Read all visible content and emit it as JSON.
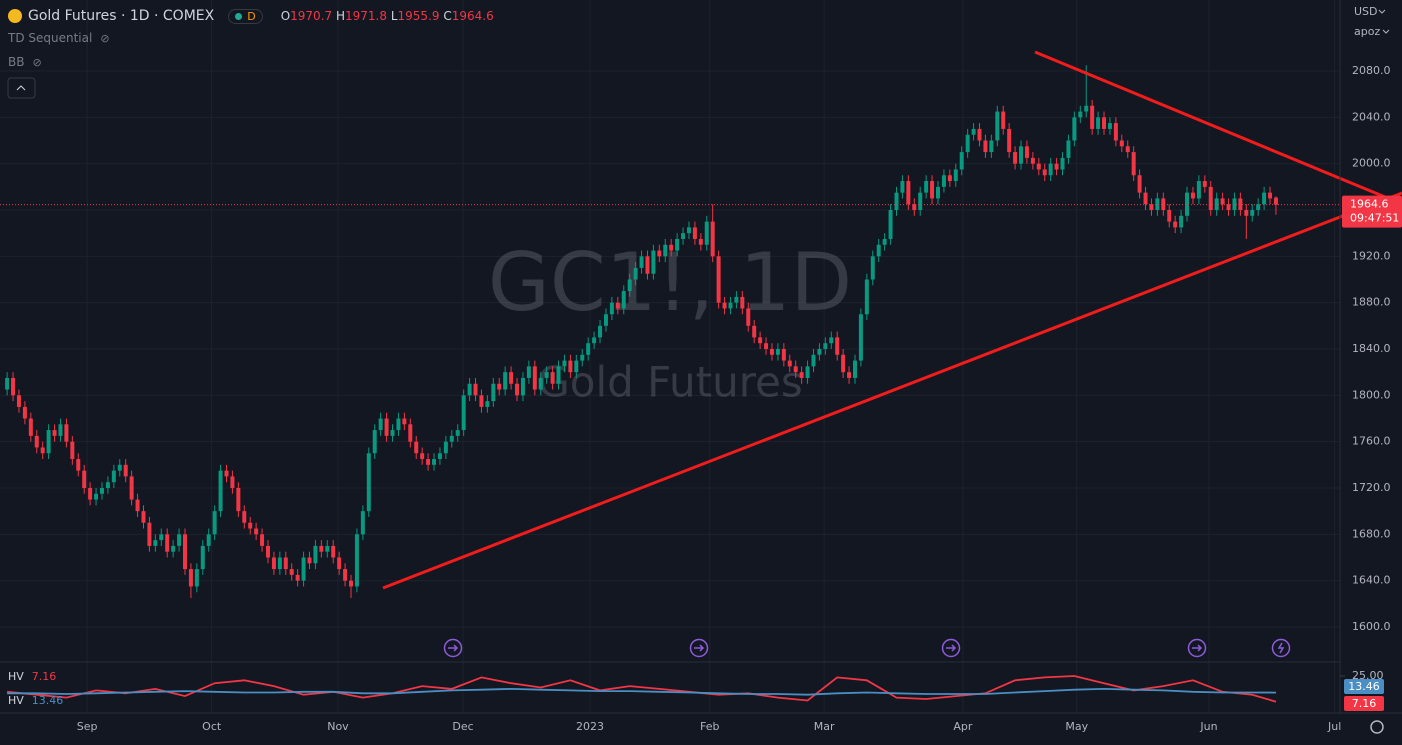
{
  "chart_data": {
    "type": "candlestick",
    "title": "Gold Futures · 1D · COMEX",
    "interval": "D",
    "ohlc_labels": [
      "O",
      "H",
      "L",
      "C"
    ],
    "indicators": [
      "TD Sequential",
      "BB"
    ],
    "watermark": {
      "symbol": "GC1!, 1D",
      "name": "Gold Futures"
    },
    "currency": "USD",
    "scale_mode": "apoz",
    "countdown": "09:47:51",
    "up_color": "#089981",
    "down_color": "#f23645",
    "price_line": true,
    "grid": true,
    "open": [
      1805,
      1815,
      1800,
      1790,
      1780,
      1765,
      1755,
      1750,
      1770,
      1765,
      1775,
      1760,
      1745,
      1735,
      1720,
      1710,
      1715,
      1720,
      1725,
      1735,
      1740,
      1730,
      1710,
      1700,
      1690,
      1670,
      1675,
      1680,
      1665,
      1670,
      1680,
      1650,
      1635,
      1650,
      1670,
      1680,
      1700,
      1735,
      1730,
      1720,
      1700,
      1690,
      1685,
      1680,
      1670,
      1660,
      1650,
      1660,
      1650,
      1645,
      1640,
      1660,
      1655,
      1670,
      1665,
      1670,
      1660,
      1650,
      1640,
      1635,
      1680,
      1700,
      1750,
      1770,
      1780,
      1765,
      1770,
      1780,
      1775,
      1760,
      1750,
      1745,
      1740,
      1745,
      1750,
      1760,
      1765,
      1770,
      1800,
      1810,
      1800,
      1790,
      1795,
      1810,
      1805,
      1820,
      1810,
      1800,
      1815,
      1825,
      1805,
      1815,
      1820,
      1810,
      1825,
      1830,
      1820,
      1830,
      1835,
      1845,
      1850,
      1860,
      1870,
      1880,
      1875,
      1890,
      1900,
      1910,
      1920,
      1905,
      1925,
      1920,
      1930,
      1925,
      1935,
      1940,
      1945,
      1935,
      1930,
      1950,
      1920,
      1880,
      1875,
      1880,
      1885,
      1875,
      1860,
      1850,
      1845,
      1840,
      1835,
      1840,
      1830,
      1825,
      1820,
      1815,
      1825,
      1835,
      1840,
      1845,
      1850,
      1835,
      1820,
      1815,
      1830,
      1870,
      1900,
      1920,
      1930,
      1935,
      1960,
      1975,
      1985,
      1965,
      1960,
      1975,
      1985,
      1970,
      1980,
      1990,
      1985,
      1995,
      2010,
      2025,
      2030,
      2020,
      2010,
      2020,
      2045,
      2030,
      2010,
      2000,
      2015,
      2005,
      2000,
      1995,
      1990,
      2000,
      1995,
      2005,
      2020,
      2040,
      2045,
      2050,
      2030,
      2040,
      2030,
      2035,
      2020,
      2015,
      2010,
      1990,
      1975,
      1965,
      1960,
      1970,
      1960,
      1950,
      1945,
      1955,
      1975,
      1970,
      1985,
      1980,
      1960,
      1970,
      1965,
      1960,
      1970,
      1960,
      1955,
      1960,
      1965,
      1975,
      1970.7
    ],
    "high": [
      1820,
      1820,
      1805,
      1795,
      1785,
      1770,
      1760,
      1775,
      1775,
      1780,
      1780,
      1765,
      1750,
      1740,
      1725,
      1720,
      1725,
      1730,
      1740,
      1745,
      1745,
      1735,
      1715,
      1705,
      1695,
      1680,
      1685,
      1685,
      1675,
      1685,
      1685,
      1655,
      1655,
      1675,
      1685,
      1705,
      1740,
      1740,
      1735,
      1725,
      1705,
      1695,
      1690,
      1685,
      1675,
      1665,
      1665,
      1665,
      1655,
      1650,
      1665,
      1665,
      1675,
      1675,
      1675,
      1675,
      1665,
      1655,
      1645,
      1685,
      1705,
      1755,
      1775,
      1785,
      1785,
      1775,
      1785,
      1785,
      1780,
      1765,
      1755,
      1750,
      1750,
      1755,
      1765,
      1770,
      1775,
      1805,
      1815,
      1815,
      1805,
      1800,
      1815,
      1815,
      1825,
      1825,
      1815,
      1820,
      1830,
      1830,
      1820,
      1825,
      1825,
      1830,
      1835,
      1835,
      1835,
      1840,
      1850,
      1855,
      1865,
      1875,
      1885,
      1885,
      1895,
      1905,
      1915,
      1925,
      1925,
      1930,
      1930,
      1935,
      1935,
      1940,
      1945,
      1950,
      1950,
      1940,
      1955,
      1965,
      1925,
      1885,
      1885,
      1890,
      1890,
      1880,
      1865,
      1855,
      1850,
      1845,
      1845,
      1845,
      1835,
      1830,
      1825,
      1830,
      1840,
      1845,
      1850,
      1855,
      1855,
      1840,
      1825,
      1835,
      1875,
      1905,
      1925,
      1935,
      1940,
      1965,
      1980,
      1990,
      1990,
      1970,
      1980,
      1990,
      1990,
      1985,
      1995,
      1995,
      2000,
      2015,
      2030,
      2035,
      2035,
      2025,
      2025,
      2050,
      2050,
      2035,
      2015,
      2020,
      2020,
      2010,
      2005,
      2000,
      2005,
      2005,
      2010,
      2025,
      2045,
      2050,
      2085,
      2055,
      2045,
      2045,
      2040,
      2040,
      2025,
      2020,
      2015,
      1995,
      1980,
      1970,
      1975,
      1975,
      1965,
      1955,
      1960,
      1980,
      1980,
      1990,
      1990,
      1985,
      1975,
      1975,
      1970,
      1975,
      1975,
      1965,
      1965,
      1970,
      1980,
      1980,
      1971.8
    ],
    "low": [
      1800,
      1795,
      1785,
      1775,
      1760,
      1750,
      1745,
      1745,
      1760,
      1760,
      1755,
      1740,
      1730,
      1715,
      1705,
      1705,
      1710,
      1715,
      1720,
      1730,
      1725,
      1705,
      1695,
      1685,
      1665,
      1665,
      1670,
      1660,
      1660,
      1665,
      1645,
      1625,
      1630,
      1645,
      1665,
      1675,
      1695,
      1725,
      1715,
      1695,
      1685,
      1680,
      1675,
      1665,
      1655,
      1645,
      1645,
      1645,
      1640,
      1635,
      1635,
      1650,
      1650,
      1660,
      1660,
      1655,
      1645,
      1635,
      1625,
      1630,
      1675,
      1695,
      1745,
      1765,
      1760,
      1760,
      1765,
      1770,
      1755,
      1745,
      1740,
      1735,
      1735,
      1740,
      1745,
      1755,
      1760,
      1765,
      1795,
      1795,
      1785,
      1785,
      1790,
      1800,
      1800,
      1805,
      1795,
      1795,
      1810,
      1800,
      1800,
      1810,
      1805,
      1805,
      1820,
      1815,
      1815,
      1825,
      1830,
      1840,
      1845,
      1855,
      1865,
      1870,
      1870,
      1885,
      1895,
      1905,
      1900,
      1900,
      1915,
      1915,
      1920,
      1920,
      1930,
      1935,
      1930,
      1925,
      1925,
      1915,
      1875,
      1870,
      1870,
      1875,
      1870,
      1855,
      1845,
      1840,
      1835,
      1830,
      1830,
      1825,
      1820,
      1815,
      1810,
      1810,
      1820,
      1830,
      1835,
      1840,
      1830,
      1815,
      1810,
      1810,
      1825,
      1865,
      1895,
      1915,
      1925,
      1930,
      1955,
      1970,
      1960,
      1955,
      1955,
      1970,
      1965,
      1965,
      1975,
      1980,
      1980,
      1990,
      2005,
      2020,
      2015,
      2005,
      2005,
      2015,
      2025,
      2005,
      1995,
      1995,
      2000,
      1995,
      1990,
      1985,
      1985,
      1990,
      1990,
      2000,
      2015,
      2035,
      2040,
      2025,
      2025,
      2025,
      2025,
      2015,
      2010,
      2005,
      1985,
      1970,
      1960,
      1955,
      1955,
      1955,
      1945,
      1940,
      1940,
      1950,
      1965,
      1965,
      1975,
      1955,
      1955,
      1960,
      1955,
      1955,
      1955,
      1935,
      1950,
      1955,
      1960,
      1965,
      1955.9
    ],
    "close": [
      1815,
      1800,
      1790,
      1780,
      1765,
      1755,
      1750,
      1770,
      1765,
      1775,
      1760,
      1745,
      1735,
      1720,
      1710,
      1715,
      1720,
      1725,
      1735,
      1740,
      1730,
      1710,
      1700,
      1690,
      1670,
      1675,
      1680,
      1665,
      1670,
      1680,
      1650,
      1635,
      1650,
      1670,
      1680,
      1700,
      1735,
      1730,
      1720,
      1700,
      1690,
      1685,
      1680,
      1670,
      1660,
      1650,
      1660,
      1650,
      1645,
      1640,
      1660,
      1655,
      1670,
      1665,
      1670,
      1660,
      1650,
      1640,
      1635,
      1680,
      1700,
      1750,
      1770,
      1780,
      1765,
      1770,
      1780,
      1775,
      1760,
      1750,
      1745,
      1740,
      1745,
      1750,
      1760,
      1765,
      1770,
      1800,
      1810,
      1800,
      1790,
      1795,
      1810,
      1805,
      1820,
      1810,
      1800,
      1815,
      1825,
      1805,
      1815,
      1820,
      1810,
      1825,
      1830,
      1820,
      1830,
      1835,
      1845,
      1850,
      1860,
      1870,
      1880,
      1875,
      1890,
      1900,
      1910,
      1920,
      1905,
      1925,
      1920,
      1930,
      1925,
      1935,
      1940,
      1945,
      1935,
      1930,
      1950,
      1920,
      1880,
      1875,
      1880,
      1885,
      1875,
      1860,
      1850,
      1845,
      1840,
      1835,
      1840,
      1830,
      1825,
      1820,
      1815,
      1825,
      1835,
      1840,
      1845,
      1850,
      1835,
      1820,
      1815,
      1830,
      1870,
      1900,
      1920,
      1930,
      1935,
      1960,
      1975,
      1985,
      1965,
      1960,
      1975,
      1985,
      1970,
      1980,
      1990,
      1985,
      1995,
      2010,
      2025,
      2030,
      2020,
      2010,
      2020,
      2045,
      2030,
      2010,
      2000,
      2015,
      2005,
      2000,
      1995,
      1990,
      2000,
      1995,
      2005,
      2020,
      2040,
      2045,
      2050,
      2030,
      2040,
      2030,
      2035,
      2020,
      2015,
      2010,
      1990,
      1975,
      1965,
      1960,
      1970,
      1960,
      1950,
      1945,
      1955,
      1975,
      1970,
      1985,
      1980,
      1960,
      1970,
      1965,
      1960,
      1970,
      1960,
      1955,
      1960,
      1965,
      1975,
      1970,
      1964.6
    ],
    "xlim": [
      -1.2,
      224.8
    ],
    "xticks": [
      {
        "value": 13.5,
        "label": "Sep"
      },
      {
        "value": 34.5,
        "label": "Oct"
      },
      {
        "value": 55.8,
        "label": "Nov"
      },
      {
        "value": 76.9,
        "label": "Dec"
      },
      {
        "value": 98.3,
        "label": "2023"
      },
      {
        "value": 118.5,
        "label": "Feb"
      },
      {
        "value": 137.8,
        "label": "Mar"
      },
      {
        "value": 161.2,
        "label": "Apr"
      },
      {
        "value": 180.4,
        "label": "May"
      },
      {
        "value": 202.7,
        "label": "Jun"
      },
      {
        "value": 223.9,
        "label": "Jul"
      }
    ],
    "ylim": [
      1571.5,
      2141.3
    ],
    "yticks": [
      {
        "value": 1600,
        "label": "1600.0"
      },
      {
        "value": 1640,
        "label": "1640.0"
      },
      {
        "value": 1680,
        "label": "1680.0"
      },
      {
        "value": 1720,
        "label": "1720.0"
      },
      {
        "value": 1760,
        "label": "1760.0"
      },
      {
        "value": 1800,
        "label": "1800.0"
      },
      {
        "value": 1840,
        "label": "1840.0"
      },
      {
        "value": 1880,
        "label": "1880.0"
      },
      {
        "value": 1920,
        "label": "1920.0"
      },
      {
        "value": 1960,
        "label": "1960.0"
      },
      {
        "value": 2000,
        "label": "2000.0"
      },
      {
        "value": 2040,
        "label": "2040.0"
      },
      {
        "value": 2080,
        "label": "2080.0"
      }
    ],
    "hv": {
      "type": "line",
      "ylim": [
        0,
        34
      ],
      "yticks": [
        {
          "value": 25,
          "label": "25.00"
        }
      ],
      "x": [
        0,
        5,
        10,
        15,
        20,
        25,
        30,
        35,
        40,
        45,
        50,
        55,
        60,
        65,
        70,
        75,
        80,
        85,
        90,
        95,
        100,
        105,
        110,
        115,
        120,
        125,
        130,
        135,
        140,
        145,
        150,
        155,
        160,
        165,
        170,
        175,
        180,
        185,
        190,
        195,
        200,
        205,
        210,
        214
      ],
      "series": [
        {
          "name": "HV",
          "color": "#f23645",
          "values": [
            14,
            12,
            10,
            15,
            13,
            16,
            11,
            20,
            22,
            18,
            12,
            14,
            10,
            13,
            18,
            16,
            24,
            20,
            17,
            22,
            15,
            18,
            16,
            14,
            12,
            13,
            10,
            8,
            24,
            22,
            10,
            9,
            11,
            13,
            22,
            24,
            25,
            20,
            15,
            18,
            22,
            14,
            12,
            7.16
          ]
        },
        {
          "name": "HV",
          "color": "#4a8ec4",
          "values": [
            13,
            13,
            12.5,
            13,
            13.5,
            14,
            14.5,
            14,
            13.5,
            13.5,
            14,
            14,
            13,
            13,
            14,
            15,
            15.5,
            16,
            15.5,
            15,
            14.5,
            14.5,
            14,
            13.5,
            13,
            12.5,
            12.5,
            12,
            13,
            13.5,
            13,
            12.5,
            12.5,
            12.5,
            13.5,
            14.5,
            15.5,
            16,
            15.5,
            15,
            14,
            13.5,
            13.5,
            13.46
          ]
        }
      ]
    }
  }
}
